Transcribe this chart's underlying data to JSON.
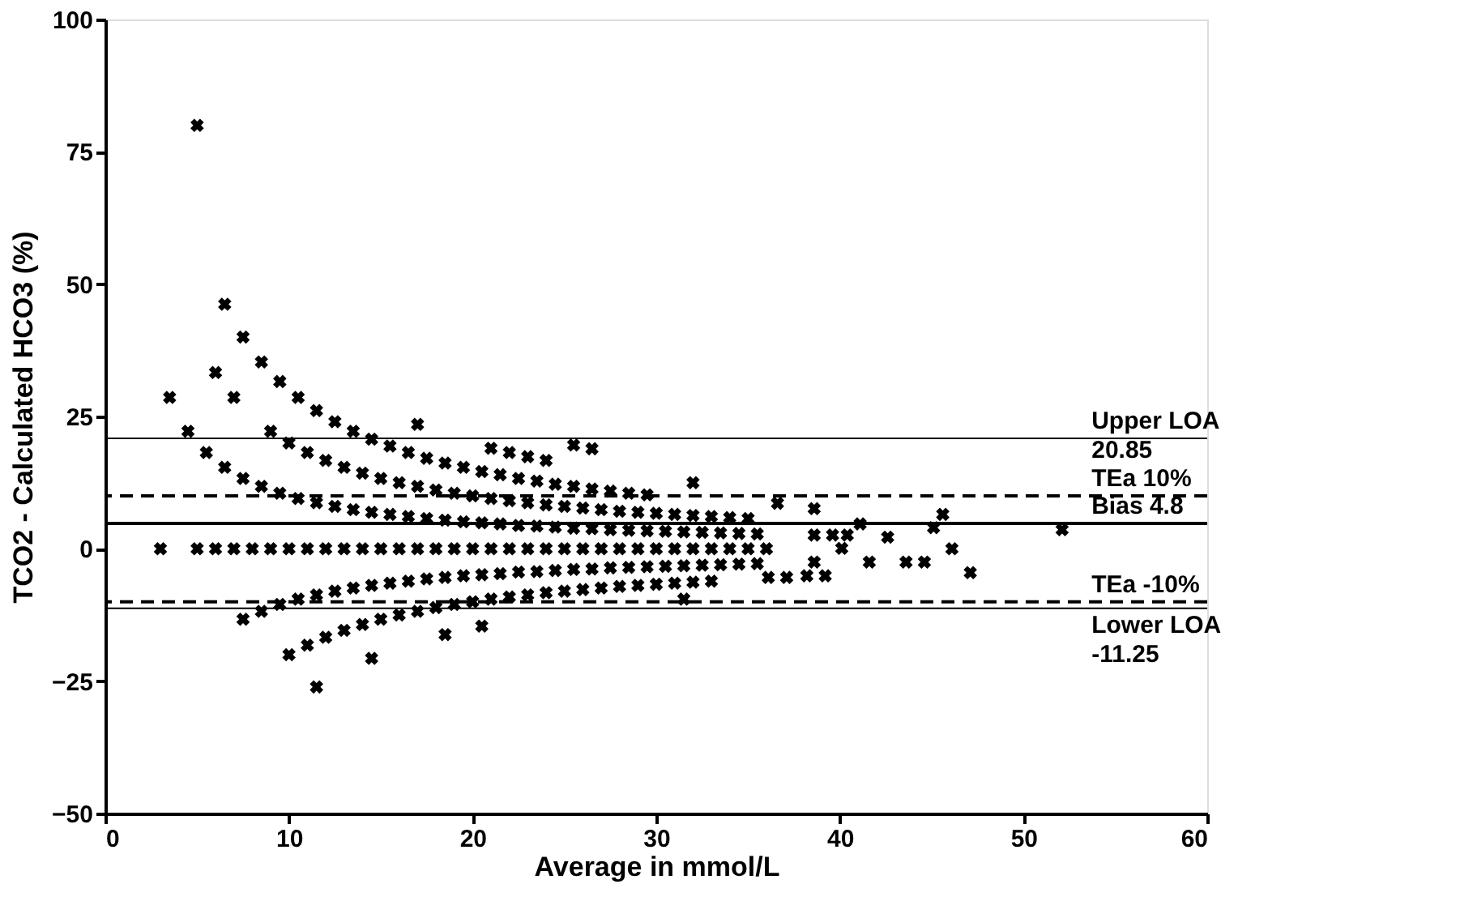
{
  "chart_data": {
    "type": "scatter",
    "xlabel": "Average in mmol/L",
    "ylabel": "TCO2 - Calculated HCO3 (%)",
    "xlim": [
      0,
      60
    ],
    "xticks": [
      0,
      10,
      20,
      30,
      40,
      50,
      60
    ],
    "ylim": [
      -50,
      100
    ],
    "yticks": [
      -50,
      -25,
      0,
      25,
      50,
      75,
      100
    ],
    "grid": false,
    "marker": "cross",
    "series": [
      {
        "color": "#000000",
        "x": [
          5,
          17,
          21,
          22,
          23,
          24,
          32,
          25.5,
          26.5,
          6.5,
          7.5,
          8.5,
          9.5,
          10.5,
          11.5,
          12.5,
          13.5,
          14.5,
          15.5,
          16.5,
          17.5,
          18.5,
          19.5,
          20.5,
          21.5,
          22.5,
          23.5,
          24.5,
          25.5,
          26.5,
          27.5,
          28.5,
          29.5,
          6,
          7,
          9,
          10,
          11,
          12,
          13,
          14,
          15,
          16,
          17,
          18,
          19,
          20,
          21,
          22,
          23,
          24,
          25,
          26,
          27,
          28,
          29,
          30,
          31,
          32,
          33,
          34,
          35,
          3.5,
          4.5,
          5.5,
          6.5,
          7.5,
          8.5,
          9.5,
          10.5,
          11.5,
          12.5,
          13.5,
          14.5,
          15.5,
          16.5,
          17.5,
          18.5,
          19.5,
          20.5,
          21.5,
          22.5,
          23.5,
          24.5,
          25.5,
          26.5,
          27.5,
          28.5,
          29.5,
          30.5,
          31.5,
          32.5,
          33.5,
          34.5,
          35.5,
          3,
          5,
          6,
          7,
          8,
          9,
          10,
          11,
          12,
          13,
          14,
          15,
          16,
          17,
          18,
          19,
          20,
          21,
          22,
          23,
          24,
          25,
          26,
          27,
          28,
          29,
          30,
          31,
          32,
          33,
          34,
          35,
          36,
          7.5,
          8.5,
          9.5,
          10.5,
          11.5,
          12.5,
          13.5,
          14.5,
          15.5,
          16.5,
          17.5,
          18.5,
          19.5,
          20.5,
          21.5,
          22.5,
          23.5,
          24.5,
          25.5,
          26.5,
          27.5,
          28.5,
          29.5,
          30.5,
          31.5,
          32.5,
          33.5,
          34.5,
          35.5,
          10,
          11,
          12,
          13,
          14,
          15,
          16,
          17,
          18,
          19,
          20,
          21,
          22,
          23,
          24,
          25,
          26,
          27,
          28,
          29,
          30,
          31,
          32,
          33,
          11.5,
          14.5,
          18.5,
          20.5,
          31.5,
          36.6,
          38.6,
          41.1,
          45.6,
          45.1,
          52.1,
          38.6,
          39.6,
          40.4,
          42.6,
          40.1,
          46.1,
          41.6,
          43.6,
          44.6,
          47.1,
          38.6,
          39.2,
          38.2,
          36.1,
          37.1
        ],
        "values": [
          80,
          23.5,
          19.0,
          18.2,
          17.4,
          16.7,
          12.5,
          19.6,
          18.9,
          46.2,
          40.0,
          35.3,
          31.6,
          28.6,
          26.1,
          24.0,
          22.2,
          20.7,
          19.4,
          18.2,
          17.1,
          16.2,
          15.4,
          14.6,
          14.0,
          13.3,
          12.8,
          12.2,
          11.8,
          11.3,
          10.9,
          10.5,
          10.2,
          33.3,
          28.6,
          22.2,
          20,
          18.2,
          16.7,
          15.4,
          14.3,
          13.3,
          12.5,
          11.8,
          11.1,
          10.5,
          10,
          9.5,
          9.1,
          8.7,
          8.3,
          8,
          7.7,
          7.4,
          7.1,
          6.9,
          6.7,
          6.5,
          6.3,
          6.1,
          5.9,
          5.7,
          28.6,
          22.2,
          18.2,
          15.4,
          13.3,
          11.8,
          10.5,
          9.5,
          8.7,
          8.0,
          7.4,
          6.9,
          6.5,
          6.1,
          5.7,
          5.4,
          5.1,
          4.9,
          4.7,
          4.4,
          4.3,
          4.1,
          3.9,
          3.8,
          3.6,
          3.5,
          3.4,
          3.3,
          3.2,
          3.1,
          3.0,
          2.9,
          2.8,
          0,
          0,
          0,
          0,
          0,
          0,
          0,
          0,
          0,
          0,
          0,
          0,
          0,
          0,
          0,
          0,
          0,
          0,
          0,
          0,
          0,
          0,
          0,
          0,
          0,
          0,
          0,
          0,
          0,
          0,
          0,
          0,
          0,
          -13.3,
          -11.8,
          -10.5,
          -9.5,
          -8.7,
          -8.0,
          -7.4,
          -6.9,
          -6.5,
          -6.1,
          -5.7,
          -5.4,
          -5.1,
          -4.9,
          -4.7,
          -4.4,
          -4.3,
          -4.1,
          -3.9,
          -3.8,
          -3.6,
          -3.5,
          -3.4,
          -3.3,
          -3.2,
          -3.1,
          -3.0,
          -2.9,
          -2.8,
          -20,
          -18.2,
          -16.7,
          -15.4,
          -14.3,
          -13.3,
          -12.5,
          -11.8,
          -11.1,
          -10.5,
          -10,
          -9.5,
          -9.1,
          -8.7,
          -8.3,
          -8,
          -7.7,
          -7.4,
          -7.1,
          -6.9,
          -6.7,
          -6.5,
          -6.3,
          -6.1,
          -26.1,
          -20.7,
          -16.2,
          -14.6,
          -9.5,
          8.6,
          7.6,
          4.7,
          6.5,
          4.0,
          3.6,
          2.6,
          2.6,
          2.6,
          2.2,
          0.1,
          0,
          -2.5,
          -2.5,
          -2.5,
          -4.5,
          -2.5,
          -5.1,
          -5.1,
          -5.4,
          -5.4
        ]
      }
    ],
    "ref_lines": [
      {
        "axis": "y",
        "value": 20.85,
        "label": "Upper LOA\n20.85",
        "color": "#000000",
        "line_style": "solid"
      },
      {
        "axis": "y",
        "value": 10,
        "label": "TEa 10%",
        "color": "#000000",
        "line_style": "dashed"
      },
      {
        "axis": "y",
        "value": 4.8,
        "label": "Bias 4.8",
        "color": "#000000",
        "line_style": "solid"
      },
      {
        "axis": "y",
        "value": -10,
        "label": "TEa -10%",
        "color": "#000000",
        "line_style": "dashed"
      },
      {
        "axis": "y",
        "value": -11.25,
        "label": "Lower LOA\n-11.25",
        "color": "#000000",
        "line_style": "solid"
      }
    ]
  }
}
